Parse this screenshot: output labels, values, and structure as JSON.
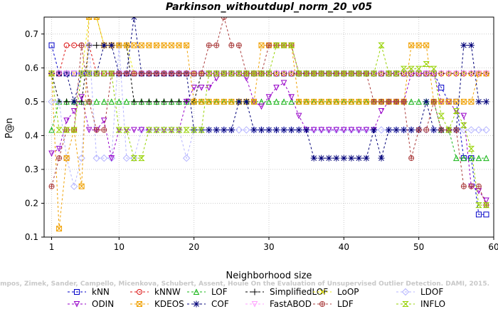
{
  "chart_data": {
    "type": "line",
    "title": "Parkinson_withoutdupl_norm_20_v05",
    "xlabel": "Neighborhood size",
    "ylabel": "P@n",
    "xlim": [
      0,
      60
    ],
    "ylim": [
      0.1,
      0.75
    ],
    "xticks": [
      1,
      10,
      20,
      30,
      40,
      50,
      60
    ],
    "yticks": [
      0.1,
      0.2,
      0.3,
      0.4,
      0.5,
      0.6,
      0.7
    ],
    "watermark": "Campos, Zimek, Sander, Campello, Micenkova, Schubert, Assent, Houle On the Evaluation of Unsupervised Outlier Detection. DAMI, 2015.",
    "legend_position": "bottom",
    "series": [
      {
        "name": "kNN",
        "color": "#0000c8",
        "marker": "square",
        "values": [
          0.6667,
          0.5833,
          0.5833,
          0.5833,
          0.5833,
          0.5833,
          0.5833,
          0.5833,
          0.5833,
          0.5833,
          0.5833,
          0.5833,
          0.5833,
          0.5833,
          0.5833,
          0.5833,
          0.5833,
          0.5833,
          0.5833,
          0.5833,
          0.5833,
          0.5833,
          0.5833,
          0.5833,
          0.5833,
          0.5833,
          0.5833,
          0.5833,
          0.5833,
          0.5833,
          0.5833,
          0.5833,
          0.5833,
          0.5833,
          0.5833,
          0.5833,
          0.5833,
          0.5833,
          0.5833,
          0.5833,
          0.5833,
          0.5833,
          0.5833,
          0.5833,
          0.5833,
          0.5833,
          0.5833,
          0.5833,
          0.5833,
          0.5833,
          0.5833,
          0.5833,
          0.5417,
          0.5,
          0.5,
          0.3333,
          0.3333,
          0.1667,
          0.1667
        ]
      },
      {
        "name": "kNNW",
        "color": "#dc1414",
        "marker": "circle",
        "values": [
          0.5833,
          0.5833,
          0.6667,
          0.6667,
          0.6667,
          0.6667,
          0.5833,
          0.5833,
          0.5833,
          0.5833,
          0.5833,
          0.5833,
          0.5833,
          0.5833,
          0.5833,
          0.5833,
          0.5833,
          0.5833,
          0.5833,
          0.5833,
          0.5833,
          0.5833,
          0.5833,
          0.5833,
          0.5833,
          0.5833,
          0.5833,
          0.5833,
          0.5833,
          0.5833,
          0.5833,
          0.5833,
          0.5833,
          0.5833,
          0.5833,
          0.5833,
          0.5833,
          0.5833,
          0.5833,
          0.5833,
          0.5833,
          0.5833,
          0.5833,
          0.5833,
          0.5833,
          0.5833,
          0.5833,
          0.5833,
          0.5833,
          0.5833,
          0.5833,
          0.5833,
          0.5833,
          0.5833,
          0.5833,
          0.5833,
          0.5833,
          0.5833,
          0.5833
        ]
      },
      {
        "name": "LOF",
        "color": "#14b414",
        "marker": "triangle-up",
        "values": [
          0.4167,
          0.5,
          0.5,
          0.5,
          0.5,
          0.5,
          0.5,
          0.5,
          0.5,
          0.5,
          0.5,
          0.5,
          0.5,
          0.5,
          0.5,
          0.5,
          0.5,
          0.5,
          0.5,
          0.5,
          0.5,
          0.5,
          0.5,
          0.5,
          0.5,
          0.5,
          0.5,
          0.5,
          0.5,
          0.5,
          0.5,
          0.5,
          0.5,
          0.5,
          0.5,
          0.5,
          0.5,
          0.5,
          0.5,
          0.5,
          0.5,
          0.5,
          0.5,
          0.5,
          0.5,
          0.5,
          0.5,
          0.5,
          0.5,
          0.5,
          0.5,
          0.5,
          0.4167,
          0.4167,
          0.3333,
          0.3333,
          0.3333,
          0.3333,
          0.3333
        ]
      },
      {
        "name": "SimplifiedLOF",
        "color": "#000000",
        "marker": "plus",
        "values": [
          0.5833,
          0.5,
          0.5,
          0.5,
          0.5,
          0.6667,
          0.6667,
          0.6667,
          0.6667,
          0.6667,
          0.6667,
          0.5,
          0.5,
          0.5,
          0.5,
          0.5,
          0.5,
          0.5,
          0.5,
          0.5,
          0.5833,
          0.5833,
          0.5833,
          0.5833,
          0.5833,
          0.5833,
          0.5833,
          0.5833,
          0.5833,
          0.5833,
          0.5833,
          0.5833,
          0.5833,
          0.5833,
          0.5833,
          0.5833,
          0.5833,
          0.5833,
          0.5833,
          0.5833,
          0.5833,
          0.5833,
          0.5833,
          0.5833,
          0.5833,
          0.5833,
          0.5833,
          0.5833,
          0.5833,
          0.5833,
          0.5833,
          0.5833,
          0.5833,
          0.5833,
          0.5833,
          0.5833,
          0.5833,
          0.5833,
          0.5833
        ]
      },
      {
        "name": "LoOP",
        "color": "#e6e600",
        "marker": "x",
        "values": [
          0.5833,
          0.5833,
          0.5833,
          0.5833,
          0.5833,
          0.75,
          0.75,
          0.6667,
          0.6667,
          0.6667,
          0.6667,
          0.5833,
          0.5833,
          0.5833,
          0.5833,
          0.5833,
          0.5833,
          0.5833,
          0.5833,
          0.5833,
          0.5833,
          0.5833,
          0.5833,
          0.5833,
          0.5833,
          0.5833,
          0.5833,
          0.5833,
          0.5833,
          0.5833,
          0.5833,
          0.5833,
          0.5833,
          0.5833,
          0.5833,
          0.5833,
          0.5833,
          0.5833,
          0.5833,
          0.5833,
          0.5833,
          0.5833,
          0.5833,
          0.5833,
          0.5833,
          0.5833,
          0.5833,
          0.5833,
          0.5833,
          0.5833,
          0.5833,
          0.5833,
          0.5833,
          0.5833,
          0.5833,
          0.5833,
          0.5833,
          0.5833,
          0.5833
        ]
      },
      {
        "name": "LDOF",
        "color": "#b4b4ff",
        "marker": "diamond",
        "values": [
          0.5,
          0.5,
          0.3333,
          0.25,
          0.3333,
          0.6667,
          0.3333,
          0.3333,
          0.3333,
          0.6667,
          0.3333,
          0.3333,
          0.4167,
          0.4167,
          0.4167,
          0.4167,
          0.4167,
          0.4167,
          0.3333,
          0.4167,
          0.4167,
          0.4167,
          0.4167,
          0.4167,
          0.4167,
          0.4167,
          0.4167,
          0.4167,
          0.4167,
          0.4167,
          0.4167,
          0.4167,
          0.4167,
          0.4167,
          0.4167,
          0.4167,
          0.4167,
          0.4167,
          0.4167,
          0.4167,
          0.4167,
          0.4167,
          0.4167,
          0.4167,
          0.4167,
          0.4167,
          0.4167,
          0.4167,
          0.4167,
          0.4167,
          0.4167,
          0.4167,
          0.4167,
          0.4167,
          0.4167,
          0.4167,
          0.4167,
          0.4167,
          0.4167
        ]
      },
      {
        "name": "ODIN",
        "color": "#9600c8",
        "marker": "triangle-down",
        "values": [
          0.3472,
          0.3611,
          0.4444,
          0.4722,
          0.5139,
          0.4167,
          0.4167,
          0.4444,
          0.3333,
          0.4167,
          0.4167,
          0.4167,
          0.4167,
          0.4167,
          0.4167,
          0.4167,
          0.4167,
          0.4167,
          0.5,
          0.5417,
          0.5417,
          0.5417,
          0.5694,
          0.5833,
          0.5833,
          0.5833,
          0.5694,
          0.5,
          0.4861,
          0.5139,
          0.5417,
          0.5556,
          0.5139,
          0.4583,
          0.4167,
          0.4167,
          0.4167,
          0.4167,
          0.4167,
          0.4167,
          0.4167,
          0.4167,
          0.4167,
          0.4167,
          0.4722,
          0.5,
          0.5,
          0.5,
          0.5833,
          0.5833,
          0.5833,
          0.5833,
          0.5,
          0.5,
          0.4722,
          0.4583,
          0.25,
          0.2361,
          0.2083
        ]
      },
      {
        "name": "KDEOS",
        "color": "#f0a000",
        "marker": "square-x",
        "values": [
          0.5833,
          0.125,
          0.3333,
          0.4167,
          0.25,
          0.75,
          0.75,
          0.6667,
          0.6667,
          0.6667,
          0.6667,
          0.6667,
          0.6667,
          0.6667,
          0.6667,
          0.6667,
          0.6667,
          0.6667,
          0.6667,
          0.5,
          0.5,
          0.5,
          0.5,
          0.5,
          0.5,
          0.5,
          0.5,
          0.5,
          0.6667,
          0.6667,
          0.6667,
          0.6667,
          0.6667,
          0.5,
          0.5,
          0.5,
          0.5,
          0.5,
          0.5,
          0.5,
          0.5,
          0.5,
          0.5,
          0.5,
          0.5,
          0.5,
          0.5,
          0.5,
          0.6667,
          0.6667,
          0.6667,
          0.5,
          0.5,
          0.5,
          0.5,
          0.5,
          0.5,
          0.5833,
          0.5833
        ]
      },
      {
        "name": "COF",
        "color": "#000078",
        "marker": "asterisk",
        "values": [
          0.5833,
          0.5833,
          0.5833,
          0.5,
          0.5833,
          0.5833,
          0.5833,
          0.6667,
          0.6667,
          0.5833,
          0.5833,
          0.75,
          0.5833,
          0.5833,
          0.5833,
          0.5833,
          0.5833,
          0.5833,
          0.5833,
          0.4167,
          0.4167,
          0.4167,
          0.4167,
          0.4167,
          0.4167,
          0.5,
          0.5,
          0.4167,
          0.4167,
          0.4167,
          0.4167,
          0.4167,
          0.4167,
          0.4167,
          0.4167,
          0.3333,
          0.3333,
          0.3333,
          0.3333,
          0.3333,
          0.3333,
          0.3333,
          0.3333,
          0.4167,
          0.3333,
          0.4167,
          0.4167,
          0.4167,
          0.4167,
          0.4167,
          0.5,
          0.4167,
          0.4167,
          0.4167,
          0.4167,
          0.6667,
          0.6667,
          0.5,
          0.5
        ]
      },
      {
        "name": "FastABOD",
        "color": "#ffa0ff",
        "marker": "triangle-down-open",
        "values": [
          0.5833,
          0.5833,
          0.5833,
          0.5833,
          0.5833,
          0.5833,
          0.5833,
          0.5833,
          0.5833,
          0.5833,
          0.5833,
          0.5833,
          0.5833,
          0.5833,
          0.5833,
          0.5833,
          0.5833,
          0.5833,
          0.5833,
          0.5833,
          0.5833,
          0.5833,
          0.5833,
          0.5833,
          0.5833,
          0.5833,
          0.5833,
          0.5833,
          0.5833,
          0.5833,
          0.5833,
          0.5833,
          0.5833,
          0.5833,
          0.5833,
          0.5833,
          0.5833,
          0.5833,
          0.5833,
          0.5833,
          0.5833,
          0.5833,
          0.5833,
          0.5833,
          0.5833,
          0.5833,
          0.5833,
          0.5833,
          0.5833,
          0.5833,
          0.5833,
          0.5833,
          0.5833,
          0.5833,
          0.5833,
          0.5833,
          0.5833,
          0.5833,
          0.5833
        ]
      },
      {
        "name": "LDF",
        "color": "#aa3c3c",
        "marker": "circle-plus",
        "values": [
          0.25,
          0.3333,
          0.4167,
          0.4167,
          0.6667,
          0.5,
          0.4167,
          0.4167,
          0.5833,
          0.5833,
          0.5833,
          0.5833,
          0.5833,
          0.5833,
          0.5833,
          0.5833,
          0.5833,
          0.5833,
          0.5833,
          0.5833,
          0.5833,
          0.6667,
          0.6667,
          0.75,
          0.6667,
          0.6667,
          0.5833,
          0.5833,
          0.5833,
          0.6667,
          0.6667,
          0.6667,
          0.6667,
          0.5833,
          0.5833,
          0.5833,
          0.5833,
          0.5833,
          0.5833,
          0.5833,
          0.5833,
          0.5833,
          0.5833,
          0.5,
          0.5,
          0.5,
          0.5,
          0.5,
          0.3333,
          0.4167,
          0.4167,
          0.5,
          0.4167,
          0.4167,
          0.4167,
          0.25,
          0.25,
          0.25,
          0.1944
        ]
      },
      {
        "name": "INFLO",
        "color": "#96d200",
        "marker": "hourglass",
        "values": [
          0.5833,
          0.4167,
          0.4167,
          0.4167,
          0.5833,
          0.5833,
          0.5833,
          0.5833,
          0.5833,
          0.4167,
          0.4167,
          0.3333,
          0.3333,
          0.4167,
          0.4167,
          0.4167,
          0.4167,
          0.4167,
          0.4167,
          0.4167,
          0.4167,
          0.5833,
          0.5833,
          0.5833,
          0.5833,
          0.5833,
          0.5833,
          0.5833,
          0.5833,
          0.5833,
          0.6667,
          0.6667,
          0.6667,
          0.5833,
          0.5833,
          0.5833,
          0.5833,
          0.5833,
          0.5833,
          0.5833,
          0.5833,
          0.5833,
          0.5833,
          0.5833,
          0.6667,
          0.5833,
          0.5833,
          0.5972,
          0.5972,
          0.5972,
          0.6111,
          0.5972,
          0.4583,
          0.4167,
          0.4722,
          0.4306,
          0.3611,
          0.1944,
          0.1944
        ]
      }
    ]
  }
}
